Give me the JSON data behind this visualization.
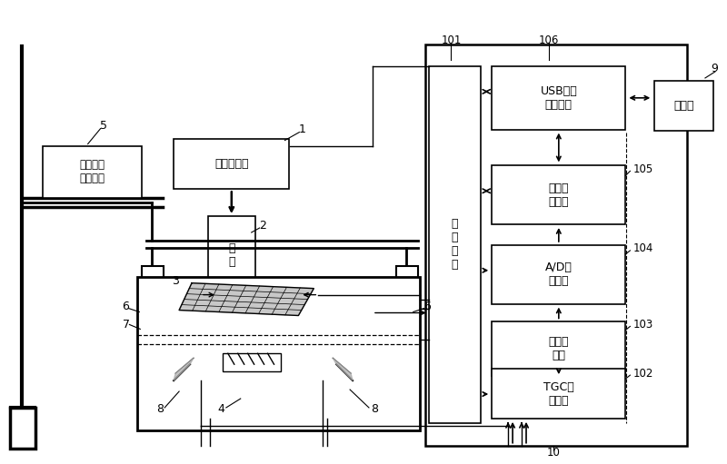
{
  "bg_color": "#ffffff",
  "labels": {
    "servo": "伺服电机\n及驱动器",
    "microwave": "微波发生器",
    "waveguide": "波\n导",
    "main_ctrl": "主\n控\n电\n路",
    "usb": "USB数据\n传输电路",
    "data_acq": "数据采\n集电路",
    "ad": "A/D采\n样电路",
    "prefilter": "预滤波\n电路",
    "tgc": "TGC放\n大电路",
    "computer": "计算机"
  }
}
